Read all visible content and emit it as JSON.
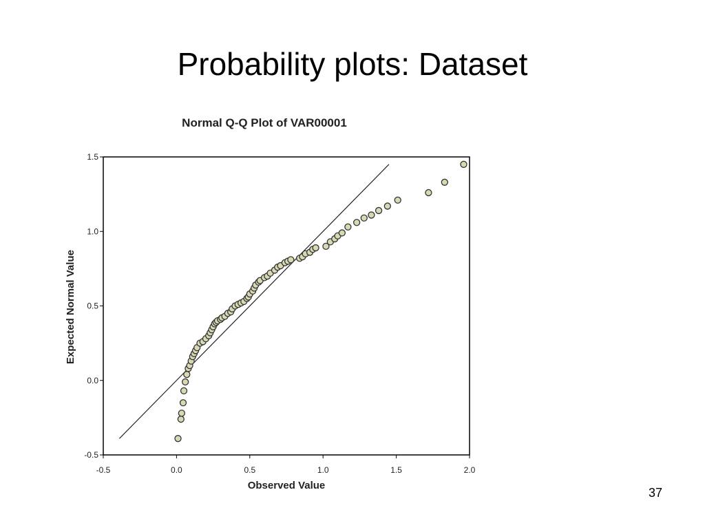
{
  "slide": {
    "title": "Probability plots: Dataset",
    "page_number": "37"
  },
  "colors": {
    "point_fill": "#d8d8b4",
    "point_stroke": "#333333",
    "line": "#222222",
    "axis": "#000000"
  },
  "chart_data": {
    "type": "scatter",
    "title": "Normal Q-Q Plot of VAR00001",
    "xlabel": "Observed Value",
    "ylabel": "Expected Normal Value",
    "xlim": [
      -0.5,
      2.0
    ],
    "ylim": [
      -0.5,
      1.5
    ],
    "xticks": [
      "-0.5",
      "0.0",
      "0.5",
      "1.0",
      "1.5",
      "2.0"
    ],
    "yticks": [
      "-0.5",
      "0.0",
      "0.5",
      "1.0",
      "1.5"
    ],
    "grid": false,
    "reference_line": [
      [
        -0.39,
        -0.39
      ],
      [
        1.45,
        1.45
      ]
    ],
    "points": [
      [
        0.01,
        -0.39
      ],
      [
        0.03,
        -0.26
      ],
      [
        0.035,
        -0.22
      ],
      [
        0.045,
        -0.15
      ],
      [
        0.05,
        -0.07
      ],
      [
        0.06,
        -0.01
      ],
      [
        0.07,
        0.04
      ],
      [
        0.08,
        0.08
      ],
      [
        0.09,
        0.1
      ],
      [
        0.1,
        0.13
      ],
      [
        0.11,
        0.16
      ],
      [
        0.12,
        0.18
      ],
      [
        0.13,
        0.2
      ],
      [
        0.14,
        0.22
      ],
      [
        0.16,
        0.25
      ],
      [
        0.18,
        0.26
      ],
      [
        0.2,
        0.28
      ],
      [
        0.22,
        0.3
      ],
      [
        0.23,
        0.32
      ],
      [
        0.24,
        0.34
      ],
      [
        0.25,
        0.36
      ],
      [
        0.26,
        0.38
      ],
      [
        0.27,
        0.39
      ],
      [
        0.28,
        0.4
      ],
      [
        0.3,
        0.41
      ],
      [
        0.31,
        0.42
      ],
      [
        0.33,
        0.43
      ],
      [
        0.35,
        0.45
      ],
      [
        0.37,
        0.46
      ],
      [
        0.38,
        0.48
      ],
      [
        0.4,
        0.5
      ],
      [
        0.42,
        0.51
      ],
      [
        0.44,
        0.52
      ],
      [
        0.46,
        0.53
      ],
      [
        0.48,
        0.55
      ],
      [
        0.49,
        0.56
      ],
      [
        0.5,
        0.58
      ],
      [
        0.52,
        0.6
      ],
      [
        0.53,
        0.62
      ],
      [
        0.54,
        0.64
      ],
      [
        0.56,
        0.66
      ],
      [
        0.57,
        0.67
      ],
      [
        0.6,
        0.69
      ],
      [
        0.62,
        0.7
      ],
      [
        0.64,
        0.72
      ],
      [
        0.67,
        0.74
      ],
      [
        0.69,
        0.76
      ],
      [
        0.71,
        0.77
      ],
      [
        0.74,
        0.79
      ],
      [
        0.76,
        0.8
      ],
      [
        0.78,
        0.81
      ],
      [
        0.84,
        0.82
      ],
      [
        0.86,
        0.83
      ],
      [
        0.88,
        0.85
      ],
      [
        0.91,
        0.86
      ],
      [
        0.93,
        0.88
      ],
      [
        0.95,
        0.89
      ],
      [
        1.02,
        0.9
      ],
      [
        1.05,
        0.93
      ],
      [
        1.08,
        0.95
      ],
      [
        1.1,
        0.97
      ],
      [
        1.13,
        0.99
      ],
      [
        1.17,
        1.03
      ],
      [
        1.23,
        1.06
      ],
      [
        1.28,
        1.09
      ],
      [
        1.33,
        1.11
      ],
      [
        1.38,
        1.14
      ],
      [
        1.44,
        1.17
      ],
      [
        1.51,
        1.21
      ],
      [
        1.72,
        1.26
      ],
      [
        1.83,
        1.33
      ],
      [
        1.96,
        1.45
      ]
    ]
  }
}
